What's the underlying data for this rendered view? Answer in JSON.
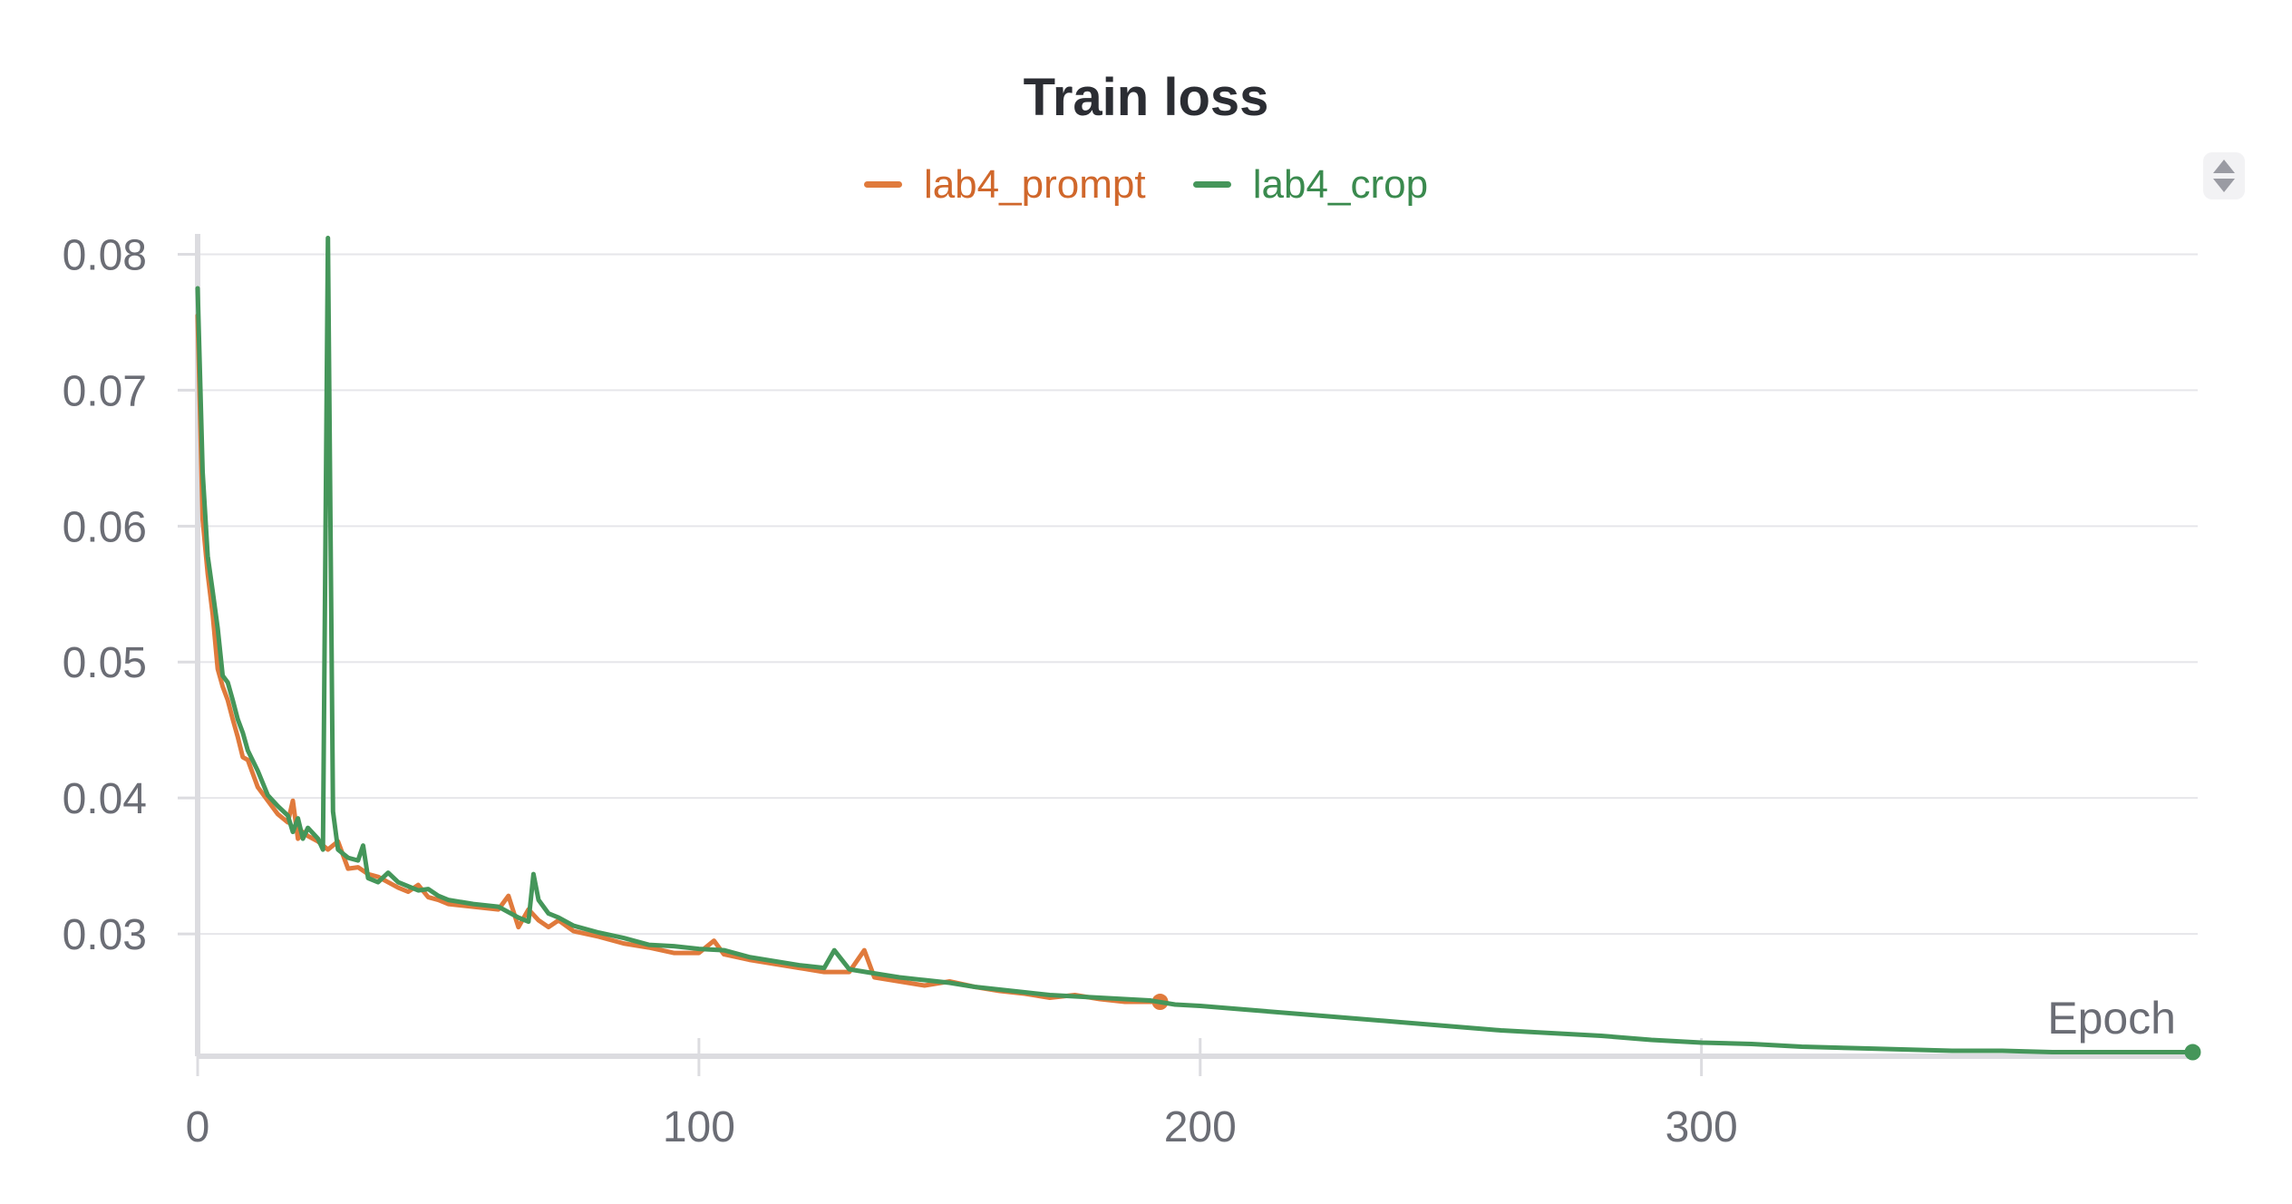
{
  "chart_data": {
    "type": "line",
    "title": "Train loss",
    "xlabel": "Epoch",
    "ylabel": "",
    "xlim": [
      0,
      400
    ],
    "ylim": [
      0.021,
      0.0815
    ],
    "xticks": [
      "0",
      "100",
      "200",
      "300"
    ],
    "yticks": [
      "0.08",
      "0.07",
      "0.06",
      "0.05",
      "0.04",
      "0.03"
    ],
    "grid": true,
    "legend": "top-center",
    "series": [
      {
        "name": "lab4_prompt",
        "color": "#e07a3c",
        "end_marker": true,
        "x": [
          0,
          1,
          2,
          3,
          4,
          5,
          6,
          7,
          8,
          9,
          10,
          12,
          14,
          16,
          18,
          19,
          20,
          21,
          22,
          24,
          26,
          28,
          30,
          32,
          34,
          36,
          38,
          40,
          42,
          44,
          46,
          48,
          50,
          55,
          60,
          62,
          64,
          66,
          68,
          70,
          72,
          75,
          80,
          85,
          90,
          95,
          100,
          103,
          105,
          110,
          115,
          120,
          125,
          130,
          133,
          135,
          140,
          145,
          150,
          155,
          160,
          165,
          170,
          175,
          180,
          185,
          192
        ],
        "y": [
          0.0755,
          0.0605,
          0.0565,
          0.0535,
          0.0495,
          0.0482,
          0.0472,
          0.0458,
          0.0445,
          0.043,
          0.0428,
          0.0408,
          0.0398,
          0.0388,
          0.0382,
          0.0398,
          0.037,
          0.0375,
          0.0372,
          0.0368,
          0.0362,
          0.0368,
          0.0348,
          0.0349,
          0.0344,
          0.0342,
          0.0338,
          0.0334,
          0.0331,
          0.0336,
          0.0327,
          0.0325,
          0.0322,
          0.032,
          0.0318,
          0.0328,
          0.0305,
          0.0318,
          0.031,
          0.0305,
          0.031,
          0.0302,
          0.0298,
          0.0293,
          0.029,
          0.0286,
          0.0286,
          0.0295,
          0.0285,
          0.0281,
          0.0278,
          0.0275,
          0.0272,
          0.0272,
          0.0288,
          0.0268,
          0.0265,
          0.0262,
          0.0265,
          0.0261,
          0.0258,
          0.0256,
          0.0253,
          0.0255,
          0.0252,
          0.025,
          0.025
        ]
      },
      {
        "name": "lab4_crop",
        "color": "#45965a",
        "end_marker": true,
        "x": [
          0,
          1,
          2,
          3,
          4,
          5,
          6,
          7,
          8,
          9,
          10,
          12,
          14,
          16,
          18,
          19,
          20,
          21,
          22,
          24,
          25,
          26,
          27,
          28,
          30,
          32,
          33,
          34,
          36,
          38,
          40,
          42,
          44,
          46,
          48,
          50,
          55,
          60,
          64,
          66,
          67,
          68,
          70,
          72,
          75,
          80,
          85,
          90,
          95,
          100,
          105,
          110,
          115,
          120,
          125,
          127,
          130,
          135,
          140,
          145,
          150,
          155,
          160,
          165,
          170,
          175,
          180,
          185,
          190,
          195,
          200,
          210,
          220,
          230,
          240,
          250,
          260,
          270,
          280,
          290,
          300,
          310,
          320,
          330,
          340,
          350,
          360,
          370,
          380,
          390,
          398
        ],
        "y": [
          0.0775,
          0.064,
          0.0578,
          0.0552,
          0.0525,
          0.049,
          0.0485,
          0.0472,
          0.0458,
          0.0448,
          0.0435,
          0.042,
          0.0402,
          0.0394,
          0.0387,
          0.0375,
          0.0385,
          0.037,
          0.0378,
          0.037,
          0.0362,
          0.0812,
          0.039,
          0.0362,
          0.0356,
          0.0354,
          0.0365,
          0.0341,
          0.0338,
          0.0345,
          0.0338,
          0.0335,
          0.0332,
          0.0333,
          0.0328,
          0.0325,
          0.0322,
          0.032,
          0.0312,
          0.0309,
          0.0344,
          0.0325,
          0.0315,
          0.0312,
          0.0306,
          0.0301,
          0.0297,
          0.0292,
          0.0291,
          0.0289,
          0.0288,
          0.0283,
          0.028,
          0.0277,
          0.0275,
          0.0288,
          0.0274,
          0.0271,
          0.0268,
          0.0266,
          0.0264,
          0.0261,
          0.0259,
          0.0257,
          0.0255,
          0.0254,
          0.0253,
          0.0252,
          0.0251,
          0.0248,
          0.0247,
          0.0244,
          0.0241,
          0.0238,
          0.0235,
          0.0232,
          0.0229,
          0.0227,
          0.0225,
          0.0222,
          0.022,
          0.0219,
          0.0217,
          0.0216,
          0.0215,
          0.0214,
          0.0214,
          0.0213,
          0.0213,
          0.0213,
          0.0213
        ]
      }
    ]
  }
}
